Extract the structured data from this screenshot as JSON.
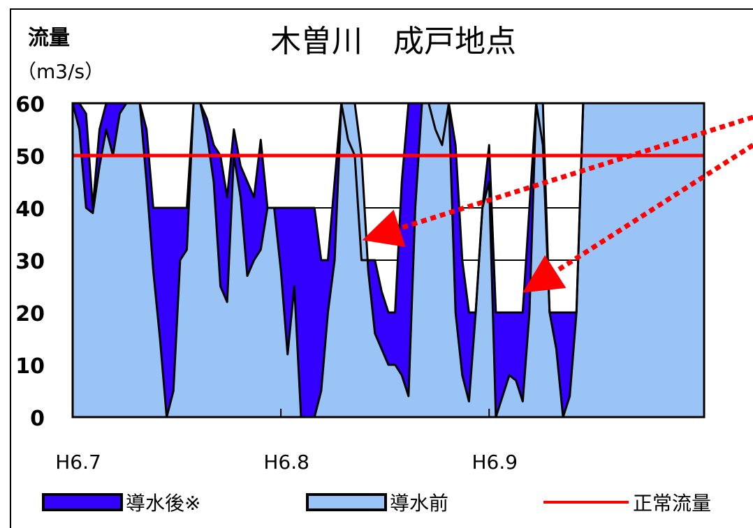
{
  "chart_data": {
    "type": "area",
    "title": "木曽川　成戸地点",
    "ylabel_line1": "流量",
    "ylabel_line2": "（m3/s）",
    "ylim": [
      0,
      60
    ],
    "yticks": [
      "0",
      "10",
      "20",
      "30",
      "40",
      "50",
      "60"
    ],
    "xlim": [
      0,
      94
    ],
    "xticks": [
      {
        "x": 0,
        "label": "H6.7"
      },
      {
        "x": 31,
        "label": "H6.8"
      },
      {
        "x": 62,
        "label": "H6.9"
      }
    ],
    "grid": true,
    "legend_position": "bottom",
    "reference_line": {
      "name": "正常流量",
      "value": 50,
      "color": "#ff0000"
    },
    "series": [
      {
        "name": "導水後※",
        "color": "#3300ff",
        "x": [
          0,
          1,
          2,
          3,
          4,
          5,
          6,
          7,
          8,
          9,
          10,
          11,
          12,
          13,
          14,
          15,
          16,
          17,
          18,
          19,
          20,
          21,
          22,
          23,
          24,
          25,
          26,
          27,
          28,
          29,
          30,
          31,
          32,
          33,
          34,
          35,
          36,
          37,
          38,
          39,
          40,
          41,
          42,
          43,
          44,
          45,
          46,
          47,
          48,
          49,
          50,
          51,
          52,
          53,
          54,
          55,
          56,
          57,
          58,
          59,
          60,
          61,
          62,
          63,
          64,
          65,
          66,
          67,
          68,
          69,
          70,
          71,
          72,
          73,
          74,
          75,
          76,
          77,
          78,
          79,
          80,
          81,
          82,
          83,
          84,
          85,
          86,
          87,
          88,
          89,
          90,
          91,
          92,
          93,
          94
        ],
        "values": [
          60,
          55,
          40,
          39,
          48,
          55,
          50,
          58,
          60,
          60,
          60,
          45,
          28,
          15,
          0,
          5,
          30,
          32,
          60,
          60,
          54,
          45,
          25,
          22,
          50,
          42,
          27,
          30,
          32,
          40,
          40,
          28,
          12,
          25,
          0,
          0,
          0,
          5,
          20,
          30,
          60,
          60,
          60,
          50,
          28,
          16,
          13,
          10,
          10,
          8,
          4,
          40,
          60,
          60,
          60,
          60,
          60,
          20,
          8,
          3,
          20,
          40,
          45,
          0,
          4,
          8,
          7,
          3,
          20,
          60,
          60,
          20,
          13,
          0,
          4,
          20,
          60,
          60,
          60,
          60,
          60,
          60,
          60,
          60,
          60,
          60,
          60,
          60,
          60,
          60,
          60,
          60,
          60,
          60,
          60
        ]
      },
      {
        "name": "導水前",
        "color": "#99c4f5",
        "x": [
          0,
          1,
          2,
          3,
          4,
          5,
          6,
          7,
          8,
          9,
          10,
          11,
          12,
          13,
          14,
          15,
          16,
          17,
          18,
          19,
          20,
          21,
          22,
          23,
          24,
          25,
          26,
          27,
          28,
          29,
          30,
          31,
          32,
          33,
          34,
          35,
          36,
          37,
          38,
          39,
          40,
          41,
          42,
          43,
          44,
          45,
          46,
          47,
          48,
          49,
          50,
          51,
          52,
          53,
          54,
          55,
          56,
          57,
          58,
          59,
          60,
          61,
          62,
          63,
          64,
          65,
          66,
          67,
          68,
          69,
          70,
          71,
          72,
          73,
          74,
          75,
          76,
          77,
          78,
          79,
          80,
          81,
          82,
          83,
          84,
          85,
          86,
          87,
          88,
          89,
          90,
          91,
          92,
          93,
          94
        ],
        "values": [
          60,
          60,
          58,
          40,
          55,
          60,
          60,
          60,
          60,
          60,
          60,
          55,
          40,
          40,
          40,
          40,
          40,
          40,
          60,
          60,
          57,
          52,
          50,
          42,
          55,
          48,
          45,
          42,
          53,
          40,
          40,
          40,
          40,
          40,
          40,
          40,
          40,
          30,
          30,
          45,
          60,
          53,
          50,
          30,
          30,
          30,
          24,
          20,
          20,
          45,
          60,
          60,
          60,
          60,
          55,
          52,
          60,
          52,
          30,
          20,
          20,
          40,
          52,
          20,
          20,
          20,
          20,
          20,
          40,
          60,
          52,
          20,
          20,
          20,
          20,
          20,
          60,
          60,
          60,
          60,
          60,
          60,
          60,
          60,
          60,
          60,
          60,
          60,
          60,
          60,
          60,
          60,
          60,
          60,
          60
        ]
      }
    ],
    "arrows_label": ""
  }
}
